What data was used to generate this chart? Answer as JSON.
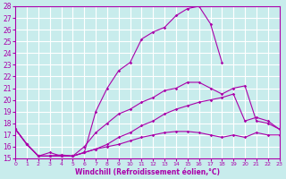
{
  "xlabel": "Windchill (Refroidissement éolien,°C)",
  "bg_color": "#c8ecec",
  "grid_color": "#ffffff",
  "line_color": "#aa00aa",
  "xlim": [
    0,
    23
  ],
  "ylim": [
    15,
    28
  ],
  "xticks": [
    0,
    1,
    2,
    3,
    4,
    5,
    6,
    7,
    8,
    9,
    10,
    11,
    12,
    13,
    14,
    15,
    16,
    17,
    18,
    19,
    20,
    21,
    22,
    23
  ],
  "yticks": [
    15,
    16,
    17,
    18,
    19,
    20,
    21,
    22,
    23,
    24,
    25,
    26,
    27,
    28
  ],
  "series": [
    {
      "x": [
        0,
        1,
        2,
        3,
        4,
        5,
        6,
        7,
        8,
        9,
        10,
        11,
        12,
        13,
        14,
        15,
        16,
        17,
        18,
        19,
        20,
        21
      ],
      "y": [
        17.5,
        16.2,
        15.2,
        15.2,
        15.3,
        15.2,
        15.5,
        19.0,
        21.0,
        22.5,
        23.2,
        25.2,
        25.8,
        26.2,
        27.2,
        27.8,
        28.0,
        26.5,
        23.2,
        null,
        null,
        null
      ]
    },
    {
      "x": [
        0,
        1,
        2,
        3,
        4,
        5,
        6,
        7,
        8,
        9,
        10,
        11,
        12,
        13,
        14,
        15,
        16,
        17,
        18,
        19,
        20,
        21,
        22,
        23
      ],
      "y": [
        17.5,
        16.2,
        15.2,
        15.5,
        15.2,
        15.2,
        16.0,
        17.2,
        18.0,
        18.8,
        19.2,
        19.8,
        20.2,
        20.8,
        21.0,
        21.5,
        21.5,
        21.0,
        20.5,
        21.0,
        21.2,
        18.2,
        18.0,
        17.5
      ]
    },
    {
      "x": [
        0,
        1,
        2,
        3,
        4,
        5,
        6,
        7,
        8,
        9,
        10,
        11,
        12,
        13,
        14,
        15,
        16,
        17,
        18,
        19,
        20,
        21,
        22,
        23
      ],
      "y": [
        17.5,
        16.2,
        15.2,
        15.2,
        15.2,
        15.2,
        15.5,
        15.8,
        16.2,
        16.8,
        17.2,
        17.8,
        18.2,
        18.8,
        19.2,
        19.5,
        19.8,
        20.0,
        20.2,
        20.5,
        18.2,
        18.5,
        18.2,
        17.5
      ]
    },
    {
      "x": [
        0,
        1,
        2,
        3,
        4,
        5,
        6,
        7,
        8,
        9,
        10,
        11,
        12,
        13,
        14,
        15,
        16,
        17,
        18,
        19,
        20,
        21,
        22,
        23
      ],
      "y": [
        17.5,
        16.2,
        15.2,
        15.2,
        15.2,
        15.2,
        15.5,
        15.8,
        16.0,
        16.2,
        16.5,
        16.8,
        17.0,
        17.2,
        17.3,
        17.3,
        17.2,
        17.0,
        16.8,
        17.0,
        16.8,
        17.2,
        17.0,
        17.0
      ]
    }
  ]
}
